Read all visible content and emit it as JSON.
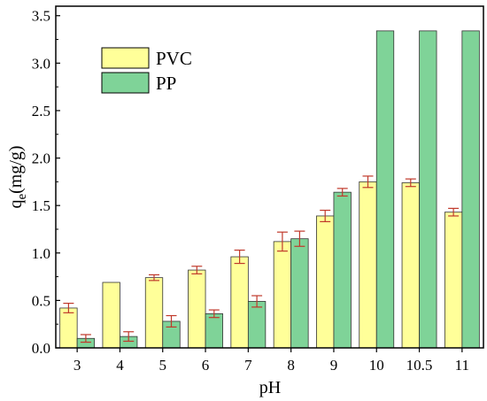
{
  "chart_data": {
    "type": "bar",
    "categories": [
      "3",
      "4",
      "5",
      "6",
      "7",
      "8",
      "9",
      "10",
      "10.5",
      "11"
    ],
    "series": [
      {
        "name": "PVC",
        "color": "#ffff99",
        "values": [
          0.42,
          0.69,
          0.74,
          0.82,
          0.96,
          1.12,
          1.39,
          1.75,
          1.74,
          1.43
        ],
        "errors": [
          0.05,
          null,
          0.03,
          0.04,
          0.07,
          0.1,
          0.06,
          0.06,
          0.04,
          0.04
        ]
      },
      {
        "name": "PP",
        "color": "#7fd398",
        "values": [
          0.1,
          0.12,
          0.28,
          0.36,
          0.49,
          1.15,
          1.64,
          3.34,
          3.34,
          3.34
        ],
        "errors": [
          0.04,
          0.05,
          0.06,
          0.04,
          0.06,
          0.08,
          0.04,
          null,
          null,
          null
        ]
      }
    ],
    "error_bar_color": "#c0392b",
    "xlabel": "pH",
    "ylabel_main": "q",
    "ylabel_sub": "e",
    "ylabel_rest": "(mg/g)",
    "ylim": [
      0,
      3.6
    ],
    "yticks": [
      "0.0",
      "0.5",
      "1.0",
      "1.5",
      "2.0",
      "2.5",
      "3.0",
      "3.5"
    ],
    "grid": false,
    "legend_position": "top-left"
  }
}
